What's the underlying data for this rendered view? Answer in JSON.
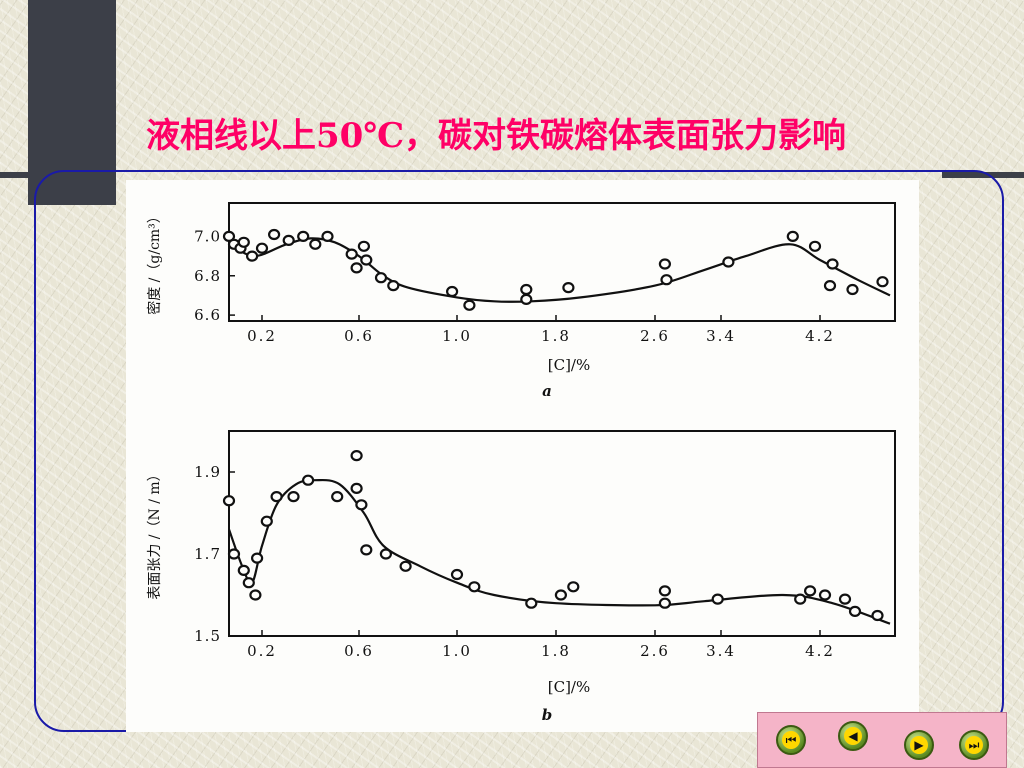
{
  "slide": {
    "title_highlight": "液相",
    "title_rest": "线以上50℃，碳对铁碳熔体表面张力影响"
  },
  "chart_data": [
    {
      "type": "scatter",
      "panel_label": "a",
      "ylabel": "密度 /（g/cm³）",
      "xlabel": "[C]/%",
      "x_tick_labels": [
        "0.2",
        "0.6",
        "1.0",
        "1.8",
        "2.6",
        "3.4",
        "4.2"
      ],
      "y_tick_labels": [
        "7.0",
        "6.8",
        "6.6"
      ],
      "y_ticks": [
        7.0,
        6.8,
        6.6
      ],
      "ylim": [
        6.57,
        7.17
      ],
      "x_axis_note": "piecewise: 0–1.0 in steps of 0.4 spacing, then 1.0–4.2 compressed (0.8 per tick)",
      "points": [
        {
          "x": 0.0,
          "y": 7.0
        },
        {
          "x": 0.03,
          "y": 6.96
        },
        {
          "x": 0.07,
          "y": 6.94
        },
        {
          "x": 0.09,
          "y": 6.97
        },
        {
          "x": 0.14,
          "y": 6.9
        },
        {
          "x": 0.2,
          "y": 6.94
        },
        {
          "x": 0.25,
          "y": 7.01
        },
        {
          "x": 0.31,
          "y": 6.98
        },
        {
          "x": 0.37,
          "y": 7.0
        },
        {
          "x": 0.42,
          "y": 6.96
        },
        {
          "x": 0.47,
          "y": 7.0
        },
        {
          "x": 0.57,
          "y": 6.91
        },
        {
          "x": 0.59,
          "y": 6.84
        },
        {
          "x": 0.62,
          "y": 6.95
        },
        {
          "x": 0.63,
          "y": 6.88
        },
        {
          "x": 0.69,
          "y": 6.79
        },
        {
          "x": 0.74,
          "y": 6.75
        },
        {
          "x": 0.98,
          "y": 6.72
        },
        {
          "x": 1.1,
          "y": 6.65
        },
        {
          "x": 1.56,
          "y": 6.73
        },
        {
          "x": 1.56,
          "y": 6.68
        },
        {
          "x": 1.9,
          "y": 6.74
        },
        {
          "x": 2.72,
          "y": 6.86
        },
        {
          "x": 2.74,
          "y": 6.78
        },
        {
          "x": 3.46,
          "y": 6.87
        },
        {
          "x": 3.98,
          "y": 7.0
        },
        {
          "x": 4.16,
          "y": 6.95
        },
        {
          "x": 4.3,
          "y": 6.86
        },
        {
          "x": 4.28,
          "y": 6.75
        },
        {
          "x": 4.46,
          "y": 6.73
        },
        {
          "x": 4.7,
          "y": 6.77
        }
      ],
      "fit_curve": [
        {
          "x": 0.0,
          "y": 6.97
        },
        {
          "x": 0.15,
          "y": 6.9
        },
        {
          "x": 0.3,
          "y": 6.96
        },
        {
          "x": 0.4,
          "y": 6.99
        },
        {
          "x": 0.5,
          "y": 6.97
        },
        {
          "x": 0.6,
          "y": 6.9
        },
        {
          "x": 0.7,
          "y": 6.8
        },
        {
          "x": 0.8,
          "y": 6.74
        },
        {
          "x": 1.0,
          "y": 6.69
        },
        {
          "x": 1.3,
          "y": 6.67
        },
        {
          "x": 1.6,
          "y": 6.67
        },
        {
          "x": 2.0,
          "y": 6.69
        },
        {
          "x": 2.6,
          "y": 6.75
        },
        {
          "x": 3.2,
          "y": 6.83
        },
        {
          "x": 3.6,
          "y": 6.9
        },
        {
          "x": 3.96,
          "y": 6.96
        },
        {
          "x": 4.2,
          "y": 6.88
        },
        {
          "x": 4.5,
          "y": 6.78
        },
        {
          "x": 4.76,
          "y": 6.7
        }
      ]
    },
    {
      "type": "scatter",
      "panel_label": "b",
      "ylabel": "表面张力 /（N / m）",
      "xlabel": "[C]/%",
      "x_tick_labels": [
        "0.2",
        "0.6",
        "1.0",
        "1.8",
        "2.6",
        "3.4",
        "4.2"
      ],
      "y_tick_labels": [
        "1.9",
        "1.7",
        "1.5"
      ],
      "y_ticks": [
        1.9,
        1.7,
        1.5
      ],
      "ylim": [
        1.5,
        2.0
      ],
      "points": [
        {
          "x": 0.0,
          "y": 1.83
        },
        {
          "x": 0.03,
          "y": 1.7
        },
        {
          "x": 0.09,
          "y": 1.66
        },
        {
          "x": 0.12,
          "y": 1.63
        },
        {
          "x": 0.16,
          "y": 1.6
        },
        {
          "x": 0.17,
          "y": 1.69
        },
        {
          "x": 0.22,
          "y": 1.78
        },
        {
          "x": 0.26,
          "y": 1.84
        },
        {
          "x": 0.33,
          "y": 1.84
        },
        {
          "x": 0.39,
          "y": 1.88
        },
        {
          "x": 0.51,
          "y": 1.84
        },
        {
          "x": 0.59,
          "y": 1.94
        },
        {
          "x": 0.59,
          "y": 1.86
        },
        {
          "x": 0.61,
          "y": 1.82
        },
        {
          "x": 0.63,
          "y": 1.71
        },
        {
          "x": 0.71,
          "y": 1.7
        },
        {
          "x": 0.79,
          "y": 1.67
        },
        {
          "x": 1.0,
          "y": 1.65
        },
        {
          "x": 1.14,
          "y": 1.62
        },
        {
          "x": 1.6,
          "y": 1.58
        },
        {
          "x": 1.84,
          "y": 1.6
        },
        {
          "x": 1.94,
          "y": 1.62
        },
        {
          "x": 2.72,
          "y": 1.61
        },
        {
          "x": 2.72,
          "y": 1.58
        },
        {
          "x": 3.36,
          "y": 1.59
        },
        {
          "x": 4.04,
          "y": 1.59
        },
        {
          "x": 4.12,
          "y": 1.61
        },
        {
          "x": 4.24,
          "y": 1.6
        },
        {
          "x": 4.4,
          "y": 1.59
        },
        {
          "x": 4.48,
          "y": 1.56
        },
        {
          "x": 4.66,
          "y": 1.55
        }
      ],
      "fit_curve": [
        {
          "x": 0.0,
          "y": 1.76
        },
        {
          "x": 0.08,
          "y": 1.67
        },
        {
          "x": 0.14,
          "y": 1.63
        },
        {
          "x": 0.2,
          "y": 1.72
        },
        {
          "x": 0.26,
          "y": 1.82
        },
        {
          "x": 0.34,
          "y": 1.87
        },
        {
          "x": 0.42,
          "y": 1.88
        },
        {
          "x": 0.52,
          "y": 1.87
        },
        {
          "x": 0.62,
          "y": 1.8
        },
        {
          "x": 0.7,
          "y": 1.72
        },
        {
          "x": 0.85,
          "y": 1.67
        },
        {
          "x": 1.0,
          "y": 1.63
        },
        {
          "x": 1.3,
          "y": 1.6
        },
        {
          "x": 1.8,
          "y": 1.58
        },
        {
          "x": 2.6,
          "y": 1.575
        },
        {
          "x": 3.2,
          "y": 1.585
        },
        {
          "x": 3.9,
          "y": 1.6
        },
        {
          "x": 4.3,
          "y": 1.58
        },
        {
          "x": 4.76,
          "y": 1.53
        }
      ]
    }
  ],
  "nav": {
    "first_glyph": "⏮",
    "prev_glyph": "◀",
    "next_glyph": "▶",
    "last_glyph": "⏭"
  }
}
